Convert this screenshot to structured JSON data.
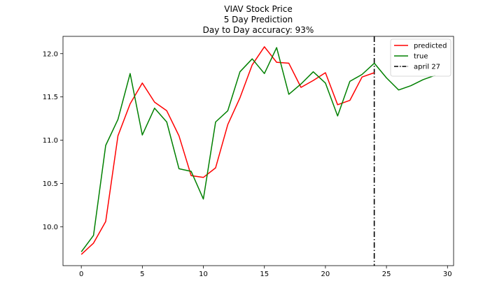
{
  "chart_data": {
    "type": "line",
    "title_lines": [
      "VIAV Stock Price",
      "5 Day Prediction",
      "Day to Day accuracy: 93%"
    ],
    "xlabel": "",
    "ylabel": "",
    "xlim": [
      -1.5,
      30.5
    ],
    "ylim": [
      9.55,
      12.2
    ],
    "x_ticks": [
      0,
      5,
      10,
      15,
      20,
      25,
      30
    ],
    "y_ticks": [
      10.0,
      10.5,
      11.0,
      11.5,
      12.0
    ],
    "y_tick_labels": [
      "10.0",
      "10.5",
      "11.0",
      "11.5",
      "12.0"
    ],
    "grid": false,
    "legend_position": "top-right",
    "series": [
      {
        "name": "predicted",
        "color": "#ff0000",
        "style": "solid",
        "x": [
          0,
          1,
          2,
          3,
          4,
          5,
          6,
          7,
          8,
          9,
          10,
          11,
          12,
          13,
          14,
          15,
          16,
          17,
          18,
          19,
          20,
          21,
          22,
          23,
          24
        ],
        "y": [
          9.68,
          9.81,
          10.06,
          11.05,
          11.42,
          11.66,
          11.44,
          11.34,
          11.05,
          10.59,
          10.57,
          10.68,
          11.18,
          11.49,
          11.87,
          12.08,
          11.9,
          11.89,
          11.61,
          11.69,
          11.78,
          11.41,
          11.46,
          11.73,
          11.78
        ]
      },
      {
        "name": "true",
        "color": "#008000",
        "style": "solid",
        "x": [
          0,
          1,
          2,
          3,
          4,
          5,
          6,
          7,
          8,
          9,
          10,
          11,
          12,
          13,
          14,
          15,
          16,
          17,
          18,
          19,
          20,
          21,
          22,
          23,
          24,
          25,
          26,
          27,
          28,
          29
        ],
        "y": [
          9.71,
          9.9,
          10.94,
          11.24,
          11.77,
          11.06,
          11.37,
          11.21,
          10.67,
          10.64,
          10.32,
          11.21,
          11.34,
          11.79,
          11.94,
          11.77,
          12.07,
          11.53,
          11.65,
          11.79,
          11.66,
          11.28,
          11.68,
          11.76,
          11.89,
          11.72,
          11.58,
          11.63,
          11.7,
          11.75
        ]
      }
    ],
    "vlines": [
      {
        "name": "april 27",
        "x": 24,
        "color": "#000000",
        "style": "dashdot"
      }
    ]
  }
}
